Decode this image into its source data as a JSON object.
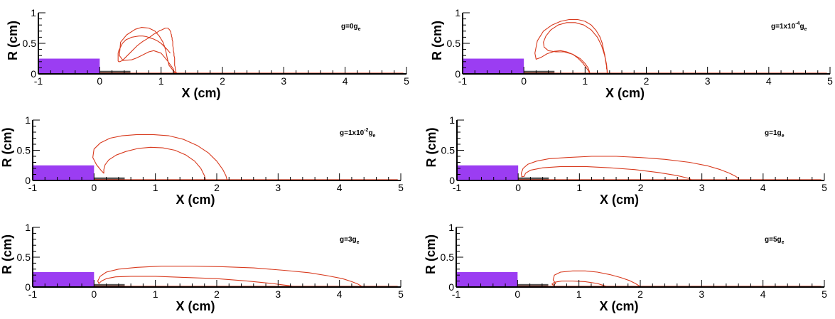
{
  "chart_data": [
    {
      "type": "line",
      "annotation": {
        "base": "g=0g",
        "sup": "",
        "sub": "e"
      },
      "xlabel": "X (cm)",
      "ylabel": "R (cm)",
      "xlim": [
        -1,
        5
      ],
      "ylim": [
        0,
        1
      ],
      "xticks": [
        "-1",
        "0",
        "1",
        "2",
        "3",
        "4",
        "5"
      ],
      "yticks": [
        "0",
        "0.5",
        "1"
      ],
      "nozzle_x": [
        -1,
        0
      ],
      "nozzle_height": 0.25,
      "wall_x": [
        0,
        0.5
      ],
      "wall_height": 0.05,
      "colors": {
        "nozzle": "#9b3df2",
        "wall": "#555555",
        "interface": "#d83a1e"
      },
      "series": [
        {
          "x": [
            1.22,
            1.2,
            1.1,
            1.0,
            0.88,
            0.8,
            0.68,
            0.6,
            0.52,
            0.38,
            0.32,
            0.34,
            0.44,
            0.58,
            0.68,
            0.8,
            0.9,
            0.97,
            1.03,
            1.06,
            1.08,
            1.1,
            1.13,
            1.2,
            1.25,
            1.26,
            1.26,
            1.26,
            1.25,
            1.24,
            1.24,
            1.23,
            1.23,
            1.22,
            1.22,
            1.22,
            1.22,
            1.21,
            1.21,
            1.2,
            1.2,
            1.19,
            1.19,
            1.19,
            1.18,
            1.18,
            1.17,
            1.17,
            1.16,
            1.16,
            1.15,
            1.14,
            1.13,
            1.12,
            1.11,
            1.1,
            1.09,
            1.07,
            1.05,
            1.03,
            1.01,
            0.98,
            0.95,
            0.92,
            0.88,
            0.84,
            0.8,
            0.75,
            0.7,
            0.66,
            0.61,
            0.57,
            0.53,
            0.49,
            0.45,
            0.42,
            0.39,
            0.37,
            0.35,
            0.33,
            0.32,
            0.31,
            0.3,
            0.3,
            0.3,
            0.3,
            0.3,
            0.3,
            0.31,
            0.33,
            0.35,
            0.37,
            0.4,
            0.43,
            0.48,
            0.52,
            0.58,
            0.64,
            0.7,
            0.76,
            0.82,
            0.88,
            0.94,
            1.0,
            1.05,
            1.1,
            1.15
          ],
          "y": [
            0.0,
            0.08,
            0.22,
            0.34,
            0.38,
            0.36,
            0.3,
            0.26,
            0.23,
            0.22,
            0.3,
            0.52,
            0.64,
            0.73,
            0.76,
            0.75,
            0.7,
            0.62,
            0.52,
            0.44,
            0.36,
            0.26,
            0.14,
            0.05,
            0.01,
            0.0,
            0.0,
            0.01,
            0.02,
            0.03,
            0.05,
            0.08,
            0.11,
            0.14,
            0.18,
            0.22,
            0.26,
            0.3,
            0.34,
            0.38,
            0.42,
            0.46,
            0.5,
            0.53,
            0.56,
            0.59,
            0.62,
            0.64,
            0.66,
            0.68,
            0.7,
            0.72,
            0.73,
            0.74,
            0.75,
            0.75,
            0.75,
            0.75,
            0.74,
            0.73,
            0.72,
            0.71,
            0.69,
            0.67,
            0.65,
            0.62,
            0.59,
            0.56,
            0.53,
            0.5,
            0.46,
            0.42,
            0.38,
            0.34,
            0.3,
            0.27,
            0.24,
            0.22,
            0.21,
            0.2,
            0.2,
            0.2,
            0.21,
            0.22,
            0.24,
            0.27,
            0.3,
            0.34,
            0.38,
            0.42,
            0.46,
            0.5,
            0.53,
            0.56,
            0.58,
            0.6,
            0.61,
            0.62,
            0.62,
            0.61,
            0.59,
            0.57,
            0.54,
            0.5,
            0.45,
            0.4,
            0.34
          ]
        }
      ],
      "base_line_end": 4.95
    },
    {
      "type": "line",
      "annotation": {
        "base": "g=1x10",
        "sup": "-4",
        "sub": "e",
        "mid": "g"
      },
      "xlabel": "X (cm)",
      "ylabel": "R (cm)",
      "xlim": [
        -1,
        5
      ],
      "ylim": [
        0,
        1
      ],
      "xticks": [
        "-1",
        "0",
        "1",
        "2",
        "3",
        "4",
        "5"
      ],
      "yticks": [
        "0",
        "0.5",
        "1"
      ],
      "nozzle_x": [
        -1,
        0
      ],
      "nozzle_height": 0.25,
      "wall_x": [
        0,
        0.5
      ],
      "wall_height": 0.05,
      "colors": {
        "nozzle": "#9b3df2",
        "wall": "#555555",
        "interface": "#d83a1e"
      },
      "series": [
        {
          "x": [
            1.08,
            1.06,
            1.02,
            0.96,
            0.88,
            0.8,
            0.7,
            0.6,
            0.5,
            0.38,
            0.28,
            0.2,
            0.18,
            0.22,
            0.32,
            0.46,
            0.6,
            0.74,
            0.88,
            1.0,
            1.1,
            1.18,
            1.24,
            1.28,
            1.3,
            1.32,
            1.33,
            1.34,
            1.35,
            1.35,
            1.36,
            1.36,
            1.37,
            1.37,
            1.37,
            1.38,
            1.38,
            1.38,
            1.38,
            1.37,
            1.35,
            1.32,
            1.26,
            1.16,
            1.02,
            0.86,
            0.7,
            0.56,
            0.46,
            0.4,
            0.38,
            0.4,
            0.48,
            0.6,
            0.74,
            0.86,
            0.96,
            1.02,
            1.06,
            1.08
          ],
          "y": [
            0.0,
            0.04,
            0.1,
            0.18,
            0.26,
            0.32,
            0.36,
            0.38,
            0.37,
            0.33,
            0.27,
            0.24,
            0.34,
            0.54,
            0.7,
            0.8,
            0.86,
            0.89,
            0.89,
            0.86,
            0.8,
            0.71,
            0.61,
            0.5,
            0.4,
            0.32,
            0.24,
            0.18,
            0.13,
            0.09,
            0.06,
            0.03,
            0.01,
            0.0,
            0.0,
            0.0,
            0.0,
            0.0,
            0.0,
            0.0,
            0.0,
            0.0,
            0.0,
            0.0,
            0.0,
            0.0,
            0.0,
            0.0,
            0.0,
            0.0,
            0.0,
            0.0,
            0.0,
            0.0,
            0.0,
            0.0,
            0.0,
            0.0,
            0.0,
            0.0
          ]
        },
        {
          "x": [
            1.36,
            1.36,
            1.35,
            1.32,
            1.27,
            1.2,
            1.1,
            0.98,
            0.84,
            0.7,
            0.56,
            0.44,
            0.36,
            0.32,
            0.33,
            0.4,
            0.52,
            0.66,
            0.8,
            0.92,
            1.0,
            1.05,
            1.07,
            1.08
          ],
          "y": [
            0.0,
            0.05,
            0.16,
            0.3,
            0.46,
            0.6,
            0.72,
            0.8,
            0.84,
            0.84,
            0.8,
            0.72,
            0.62,
            0.52,
            0.44,
            0.38,
            0.36,
            0.36,
            0.32,
            0.25,
            0.17,
            0.1,
            0.04,
            0.0
          ]
        }
      ],
      "base_line_end": 4.95
    },
    {
      "type": "line",
      "annotation": {
        "base": "g=1x10",
        "sup": "-2",
        "sub": "e",
        "mid": "g"
      },
      "xlabel": "X (cm)",
      "ylabel": "R (cm)",
      "xlim": [
        -1,
        5
      ],
      "ylim": [
        0,
        1
      ],
      "xticks": [
        "-1",
        "0",
        "1",
        "2",
        "3",
        "4",
        "5"
      ],
      "yticks": [
        "0",
        "0.5",
        "1"
      ],
      "nozzle_x": [
        -1,
        0
      ],
      "nozzle_height": 0.25,
      "wall_x": [
        0,
        0.5
      ],
      "wall_height": 0.05,
      "colors": {
        "nozzle": "#9b3df2",
        "wall": "#555555",
        "interface": "#d83a1e"
      },
      "series": [
        {
          "x": [
            1.82,
            1.8,
            1.74,
            1.64,
            1.5,
            1.32,
            1.12,
            0.92,
            0.72,
            0.52,
            0.36,
            0.24,
            0.18,
            0.16,
            0.16,
            0.12,
            0.04,
            -0.02,
            0.0,
            0.1,
            0.26,
            0.46,
            0.7,
            0.96,
            1.22,
            1.46,
            1.68,
            1.86,
            2.0,
            2.1,
            2.15,
            2.17
          ],
          "y": [
            0.0,
            0.08,
            0.2,
            0.32,
            0.42,
            0.5,
            0.54,
            0.55,
            0.53,
            0.48,
            0.42,
            0.34,
            0.26,
            0.18,
            0.12,
            0.16,
            0.26,
            0.38,
            0.52,
            0.62,
            0.7,
            0.74,
            0.76,
            0.76,
            0.74,
            0.68,
            0.58,
            0.46,
            0.32,
            0.18,
            0.08,
            0.0
          ]
        }
      ],
      "base_line_end": 4.95
    },
    {
      "type": "line",
      "annotation": {
        "base": "g=1g",
        "sup": "",
        "sub": "e"
      },
      "xlabel": "X (cm)",
      "ylabel": "R (cm)",
      "xlim": [
        -1,
        5
      ],
      "ylim": [
        0,
        1
      ],
      "xticks": [
        "-1",
        "0",
        "1",
        "2",
        "3",
        "4",
        "5"
      ],
      "yticks": [
        "0",
        "0.5",
        "1"
      ],
      "nozzle_x": [
        -1,
        0
      ],
      "nozzle_height": 0.25,
      "wall_x": [
        0,
        0.5
      ],
      "wall_height": 0.05,
      "colors": {
        "nozzle": "#9b3df2",
        "wall": "#555555",
        "interface": "#d83a1e"
      },
      "series": [
        {
          "x": [
            2.84,
            2.8,
            2.6,
            2.3,
            1.9,
            1.5,
            1.1,
            0.7,
            0.4,
            0.2,
            0.12,
            0.1,
            0.06,
            0.05,
            0.08,
            0.16,
            0.3,
            0.5,
            0.8,
            1.2,
            1.6,
            2.0,
            2.4,
            2.8,
            3.1,
            3.3,
            3.45,
            3.55,
            3.6,
            3.58,
            3.45
          ],
          "y": [
            0.0,
            0.03,
            0.08,
            0.13,
            0.18,
            0.21,
            0.23,
            0.23,
            0.21,
            0.17,
            0.12,
            0.07,
            0.06,
            0.12,
            0.2,
            0.27,
            0.32,
            0.36,
            0.38,
            0.4,
            0.4,
            0.38,
            0.35,
            0.3,
            0.24,
            0.18,
            0.12,
            0.07,
            0.03,
            0.01,
            0.01
          ]
        }
      ],
      "base_line_end": 4.95
    },
    {
      "type": "line",
      "annotation": {
        "base": "g=3g",
        "sup": "",
        "sub": "e"
      },
      "xlabel": "X (cm)",
      "ylabel": "R (cm)",
      "xlim": [
        -1,
        5
      ],
      "ylim": [
        0,
        1
      ],
      "xticks": [
        "-1",
        "0",
        "1",
        "2",
        "3",
        "4",
        "5"
      ],
      "yticks": [
        "0",
        "0.5",
        "1"
      ],
      "nozzle_x": [
        -1,
        0
      ],
      "nozzle_height": 0.25,
      "wall_x": [
        0,
        0.5
      ],
      "wall_height": 0.05,
      "colors": {
        "nozzle": "#9b3df2",
        "wall": "#555555",
        "interface": "#d83a1e"
      },
      "series": [
        {
          "x": [
            3.28,
            3.2,
            2.9,
            2.5,
            2.0,
            1.5,
            1.0,
            0.6,
            0.35,
            0.2,
            0.12,
            0.08,
            0.06,
            0.1,
            0.2,
            0.4,
            0.7,
            1.1,
            1.6,
            2.1,
            2.6,
            3.1,
            3.5,
            3.8,
            4.05,
            4.2,
            4.3,
            4.35,
            4.38
          ],
          "y": [
            0.0,
            0.02,
            0.06,
            0.1,
            0.14,
            0.16,
            0.18,
            0.18,
            0.17,
            0.14,
            0.1,
            0.06,
            0.1,
            0.18,
            0.25,
            0.3,
            0.33,
            0.35,
            0.35,
            0.34,
            0.32,
            0.28,
            0.24,
            0.19,
            0.14,
            0.09,
            0.05,
            0.02,
            0.0
          ]
        }
      ],
      "base_line_end": 4.95
    },
    {
      "type": "line",
      "annotation": {
        "base": "g=5g",
        "sup": "",
        "sub": "e"
      },
      "xlabel": "X (cm)",
      "ylabel": "R (cm)",
      "xlim": [
        -1,
        5
      ],
      "ylim": [
        0,
        1
      ],
      "xticks": [
        "-1",
        "0",
        "1",
        "2",
        "3",
        "4",
        "5"
      ],
      "yticks": [
        "0",
        "0.5",
        "1"
      ],
      "nozzle_x": [
        -1,
        0
      ],
      "nozzle_height": 0.25,
      "wall_x": [
        0,
        0.5
      ],
      "wall_height": 0.05,
      "colors": {
        "nozzle": "#9b3df2",
        "wall": "#555555",
        "interface": "#d83a1e"
      },
      "series": [
        {
          "x": [
            1.47,
            1.42,
            1.3,
            1.1,
            0.9,
            0.72,
            0.6,
            0.56,
            0.58,
            0.62,
            0.58,
            0.6,
            0.7,
            0.9,
            1.1,
            1.3,
            1.5,
            1.68,
            1.82,
            1.92,
            1.98,
            2.02
          ],
          "y": [
            0.0,
            0.02,
            0.06,
            0.09,
            0.1,
            0.1,
            0.08,
            0.05,
            0.03,
            0.06,
            0.12,
            0.2,
            0.25,
            0.27,
            0.27,
            0.25,
            0.21,
            0.16,
            0.11,
            0.06,
            0.02,
            0.0
          ]
        }
      ],
      "base_line_end": 4.95
    }
  ]
}
